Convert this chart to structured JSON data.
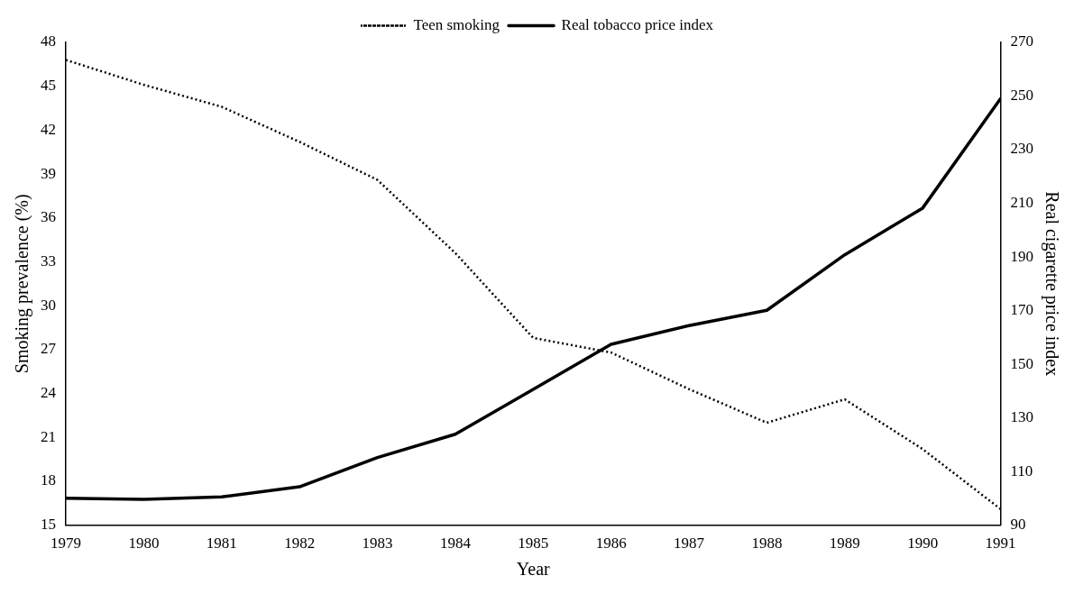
{
  "chart_data": {
    "type": "line",
    "xlabel": "Year",
    "ylabel": "Smoking prevalence (%)",
    "y2label": "Real cigarette price index",
    "x": [
      1979,
      1980,
      1981,
      1982,
      1983,
      1984,
      1985,
      1986,
      1987,
      1988,
      1989,
      1990,
      1991
    ],
    "xlim": [
      1979,
      1991
    ],
    "xticks": [
      1979,
      1980,
      1981,
      1982,
      1983,
      1984,
      1985,
      1986,
      1987,
      1988,
      1989,
      1990,
      1991
    ],
    "ylim": [
      15,
      48
    ],
    "yticks": [
      15,
      18,
      21,
      24,
      27,
      30,
      33,
      36,
      39,
      42,
      45,
      48
    ],
    "y2lim": [
      90,
      270
    ],
    "y2ticks": [
      90,
      110,
      130,
      150,
      170,
      190,
      210,
      230,
      250,
      270
    ],
    "grid": false,
    "legend": "top",
    "marker": "none",
    "series": [
      {
        "name": "Teen smoking",
        "color": "#000000",
        "line_style": "dotted",
        "values": [
          46.8,
          45.1,
          43.6,
          41.2,
          38.6,
          33.6,
          27.8,
          26.8,
          24.3,
          22.0,
          23.6,
          20.2,
          16.1
        ]
      },
      {
        "name": "Real tobacco price index",
        "color": "#000000",
        "line_style": "solid",
        "axis": "y2",
        "values": [
          100,
          99.6,
          100.5,
          104.3,
          115.2,
          123.9,
          140.6,
          157.4,
          164.4,
          170.1,
          190.8,
          208.2,
          249
        ]
      }
    ]
  }
}
